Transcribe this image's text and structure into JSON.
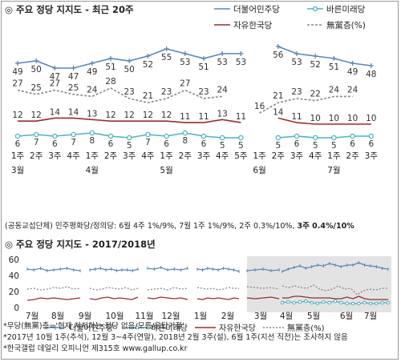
{
  "top": {
    "title": "◎ 주요 정당 지지도 - 최근 20주",
    "note_prefix": "(공동교섭단체) 민주평화당/정의당: 6월 4주 1%/9%, 7월 1주 1%/9%, 2주 0.3%/10%, ",
    "note_bold": "3주 0.4%/10%"
  },
  "bottom": {
    "title": "◎ 주요 정당 지지도 - 2017/2018년",
    "footnote1": "*무당(無黨)층='현재 지지하는 정당 없음/모름/응답거절'",
    "footnote2": "*2017년 10월 1주(추석), 12월 3~4주(연말), 2018년 2월 3주(설), 6월 1주(지선 직전)는 조사하지 않음",
    "footnote3": "*한국갤럽 데일리 오피니언 제315호 www.gallup.co.kr"
  },
  "colors": {
    "dem": "#5b87b8",
    "bar": "#4bb3c4",
    "lib": "#9b2c2c",
    "none": "#888888",
    "shade": "#e3e3e3"
  },
  "chart_data": [
    {
      "type": "line",
      "title": "주요 정당 지지도 - 최근 20주",
      "x": [
        "1주",
        "2주",
        "3주",
        "4주",
        "1주",
        "2주",
        "3주",
        "4주",
        "1주",
        "2주",
        "3주",
        "4주",
        "5주",
        "1주",
        "2주",
        "3주",
        "4주",
        "1주",
        "2주",
        "3주"
      ],
      "month_labels": [
        {
          "label": "3월",
          "at": 0
        },
        {
          "label": "4월",
          "at": 4
        },
        {
          "label": "5월",
          "at": 8
        },
        {
          "label": "6월",
          "at": 13
        },
        {
          "label": "7월",
          "at": 17
        }
      ],
      "series": [
        {
          "name": "더불어민주당",
          "key": "dem",
          "values": [
            49,
            50,
            47,
            47,
            49,
            51,
            50,
            52,
            55,
            53,
            51,
            53,
            53,
            null,
            56,
            53,
            52,
            51,
            49,
            48
          ]
        },
        {
          "name": "바른미래당",
          "key": "bar",
          "values": [
            6,
            7,
            6,
            7,
            8,
            6,
            5,
            7,
            6,
            8,
            6,
            5,
            5,
            null,
            5,
            6,
            5,
            5,
            6,
            6
          ]
        },
        {
          "name": "자유한국당",
          "key": "lib",
          "values": [
            12,
            12,
            14,
            14,
            13,
            12,
            12,
            12,
            12,
            11,
            11,
            13,
            11,
            null,
            14,
            11,
            10,
            10,
            10,
            10
          ]
        },
        {
          "name": "無黨층(%)",
          "key": "none",
          "values": [
            27,
            25,
            27,
            25,
            24,
            28,
            23,
            21,
            23,
            27,
            23,
            24,
            null,
            16,
            21,
            23,
            22,
            24,
            24,
            null
          ]
        }
      ]
    },
    {
      "type": "line",
      "title": "주요 정당 지지도 - 2017/2018년",
      "yticks": [
        0,
        20,
        40,
        60
      ],
      "ylim": [
        0,
        60
      ],
      "months": [
        "7월",
        "8월",
        "9월",
        "10월",
        "11월",
        "12월",
        "1월",
        "2월",
        "3월",
        "4월",
        "5월",
        "6월",
        "7월"
      ],
      "legend": [
        "더불어민주당",
        "바른미래당",
        "자유한국당",
        "無黨층(%)"
      ],
      "series": [
        {
          "name": "더불어민주당",
          "key": "dem",
          "segments": [
            [
              48,
              47,
              49,
              46,
              47,
              48,
              49,
              47,
              46
            ],
            [
              47,
              48,
              49,
              47,
              48,
              46,
              47,
              47,
              46,
              48
            ],
            [
              49,
              48,
              50,
              47,
              48,
              47,
              49
            ],
            [
              48,
              47,
              49,
              48,
              47,
              49,
              48,
              47,
              45
            ],
            [
              46,
              47,
              48,
              46,
              47
            ],
            [
              45,
              48,
              50,
              52,
              49,
              51,
              53,
              52,
              55,
              53,
              51,
              53,
              53,
              56,
              53,
              52,
              51,
              49,
              48
            ]
          ]
        },
        {
          "name": "자유한국당",
          "key": "lib",
          "segments": [
            [
              9,
              10,
              12,
              11,
              12,
              11,
              10,
              11,
              12
            ],
            [
              11,
              10,
              12,
              13,
              11,
              12,
              11,
              10,
              13
            ],
            [
              12,
              11,
              13,
              12,
              11,
              12,
              10
            ],
            [
              11,
              10,
              12,
              11,
              12,
              11,
              10,
              12,
              11
            ],
            [
              12,
              11,
              12,
              13,
              11
            ],
            [
              12,
              12,
              14,
              14,
              13,
              12,
              12,
              12,
              12,
              11,
              11,
              13,
              11,
              14,
              11,
              10,
              10,
              10,
              10
            ]
          ]
        },
        {
          "name": "無黨층(%)",
          "key": "none",
          "segments": [
            [
              23,
              24,
              22,
              23,
              25,
              24,
              26,
              23,
              24
            ],
            [
              24,
              22,
              23,
              25,
              24,
              23,
              25,
              22,
              24
            ],
            [
              22,
              23,
              24,
              22,
              25,
              23,
              24
            ],
            [
              25,
              24,
              23,
              24,
              22,
              23,
              25,
              24,
              24
            ],
            [
              26,
              25,
              24,
              25,
              23
            ],
            [
              27,
              25,
              27,
              25,
              24,
              28,
              23,
              21,
              23,
              27,
              23,
              24,
              16,
              21,
              23,
              22,
              24,
              24
            ]
          ]
        },
        {
          "name": "바른미래당",
          "key": "bar",
          "segments": [
            [],
            [],
            [],
            [],
            [],
            [
              6,
              7,
              6,
              7,
              8,
              6,
              5,
              7,
              6,
              8,
              6,
              5,
              5,
              5,
              6,
              5,
              5,
              6,
              6
            ]
          ]
        }
      ]
    }
  ]
}
